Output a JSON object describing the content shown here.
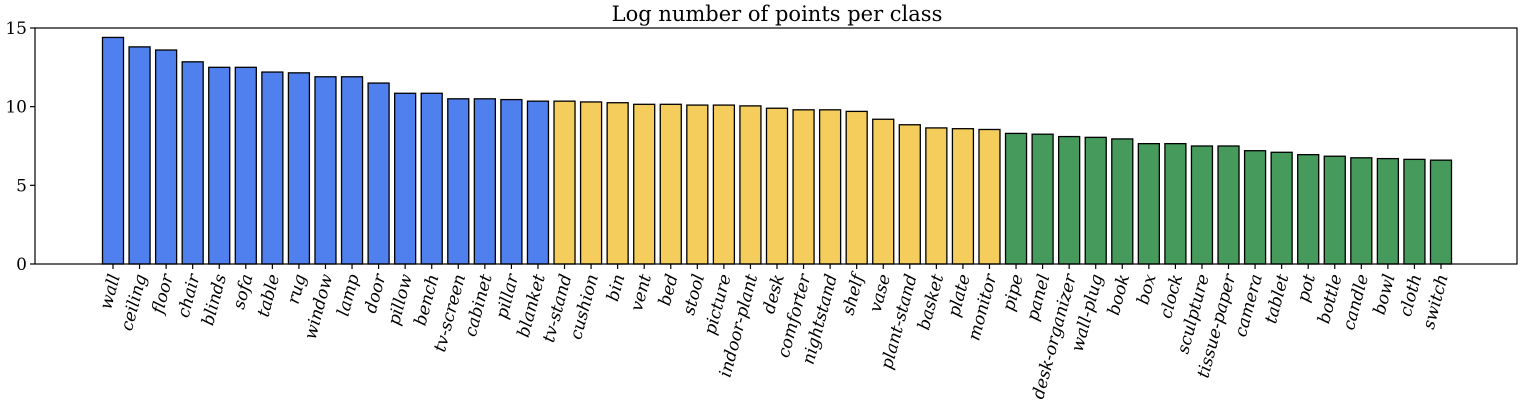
{
  "chart_data": {
    "type": "bar",
    "title": "Log number of points per class",
    "xlabel": "",
    "ylabel": "",
    "ylim": [
      0,
      15
    ],
    "yticks": [
      0,
      5,
      10,
      15
    ],
    "grid": false,
    "legend": "none",
    "colors": {
      "head": "#5080ee",
      "common": "#f5cd5d",
      "tail": "#459a5c"
    },
    "categories": [
      "wall",
      "ceiling",
      "floor",
      "chair",
      "blinds",
      "sofa",
      "table",
      "rug",
      "window",
      "lamp",
      "door",
      "pillow",
      "bench",
      "tv-screen",
      "cabinet",
      "pillar",
      "blanket",
      "tv-stand",
      "cushion",
      "bin",
      "vent",
      "bed",
      "stool",
      "picture",
      "indoor-plant",
      "desk",
      "comforter",
      "nightstand",
      "shelf",
      "vase",
      "plant-stand",
      "basket",
      "plate",
      "monitor",
      "pipe",
      "panel",
      "desk-organizer",
      "wall-plug",
      "book",
      "box",
      "clock",
      "sculpture",
      "tissue-paper",
      "camera",
      "tablet",
      "pot",
      "bottle",
      "candle",
      "bowl",
      "cloth",
      "switch"
    ],
    "values": [
      14.4,
      13.8,
      13.6,
      12.85,
      12.5,
      12.5,
      12.2,
      12.15,
      11.9,
      11.9,
      11.5,
      10.85,
      10.85,
      10.5,
      10.5,
      10.45,
      10.35,
      10.35,
      10.3,
      10.25,
      10.15,
      10.15,
      10.1,
      10.1,
      10.05,
      9.9,
      9.8,
      9.8,
      9.7,
      9.2,
      8.85,
      8.65,
      8.6,
      8.55,
      8.3,
      8.25,
      8.1,
      8.05,
      7.95,
      7.65,
      7.65,
      7.5,
      7.5,
      7.2,
      7.1,
      6.95,
      6.85,
      6.75,
      6.7,
      6.65,
      6.6
    ],
    "groups": [
      "head",
      "head",
      "head",
      "head",
      "head",
      "head",
      "head",
      "head",
      "head",
      "head",
      "head",
      "head",
      "head",
      "head",
      "head",
      "head",
      "head",
      "common",
      "common",
      "common",
      "common",
      "common",
      "common",
      "common",
      "common",
      "common",
      "common",
      "common",
      "common",
      "common",
      "common",
      "common",
      "common",
      "common",
      "tail",
      "tail",
      "tail",
      "tail",
      "tail",
      "tail",
      "tail",
      "tail",
      "tail",
      "tail",
      "tail",
      "tail",
      "tail",
      "tail",
      "tail",
      "tail",
      "tail"
    ]
  }
}
